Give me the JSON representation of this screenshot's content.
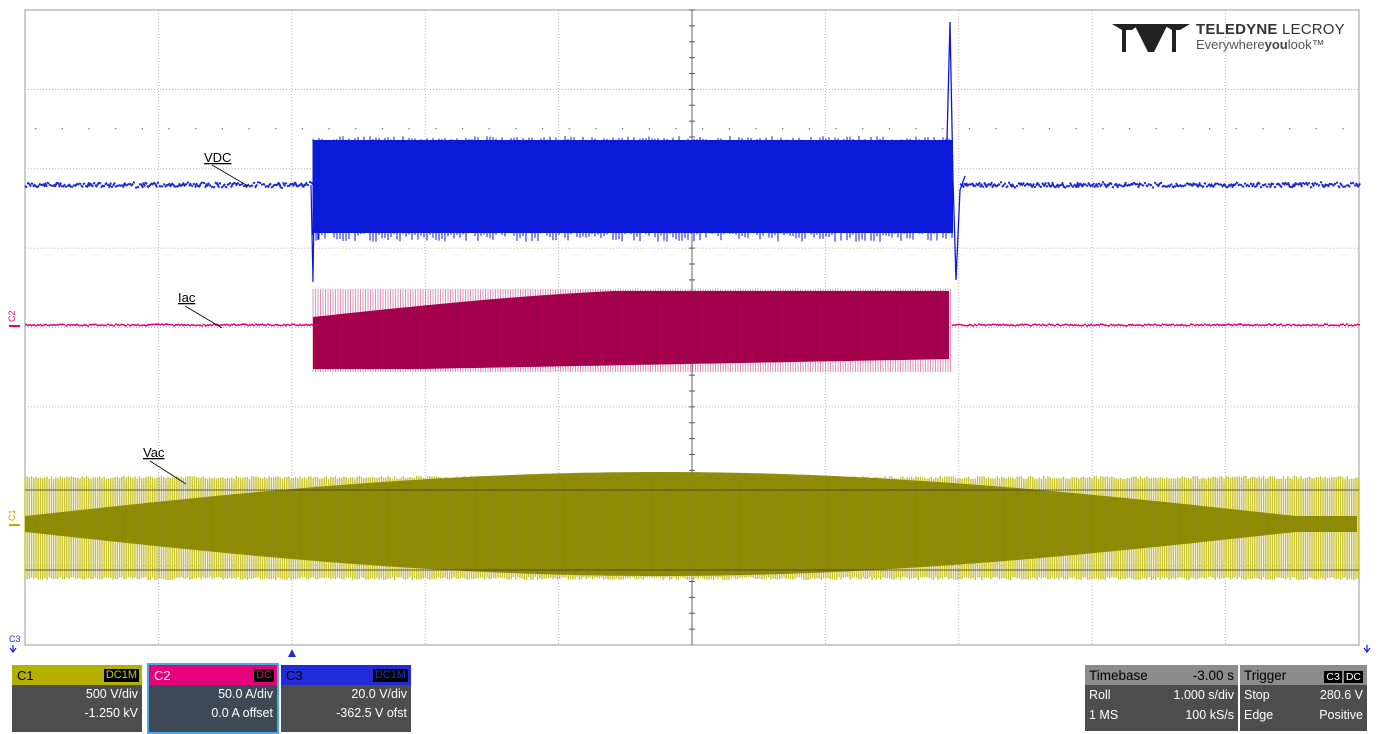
{
  "trace_labels": {
    "vdc": "VDC",
    "iac": "Iac",
    "vac": "Vac"
  },
  "channel_markers": {
    "c1": "C1",
    "c2": "C2",
    "c3": "C3"
  },
  "logo": {
    "brand_bold": "TELEDYNE",
    "brand_light": " LECROY",
    "tagline_a": "Everywhere",
    "tagline_b": "you",
    "tagline_c": "look",
    "tm": "™"
  },
  "channels": [
    {
      "id": "C1",
      "coupling": "DC1M",
      "vdiv": "500 V/div",
      "offset": "-1.250 kV"
    },
    {
      "id": "C2",
      "coupling": "DC",
      "vdiv": "50.0 A/div",
      "offset": "0.0 A offset"
    },
    {
      "id": "C3",
      "coupling": "DC1M",
      "vdiv": "20.0 V/div",
      "offset": "-362.5 V ofst"
    }
  ],
  "timebase": {
    "label": "Timebase",
    "delay": "-3.00 s",
    "mode": "Roll",
    "tdiv": "1.000 s/div",
    "points": "1 MS",
    "rate": "100 kS/s"
  },
  "trigger": {
    "label": "Trigger",
    "source": "C3",
    "coupling": "DC",
    "state": "Stop",
    "level": "280.6 V",
    "type": "Edge",
    "slope": "Positive"
  },
  "colors": {
    "c1": "#8a8600",
    "c2": "#a0004a",
    "c3": "#0a1ad8",
    "grid": "#aaaaaa"
  }
}
